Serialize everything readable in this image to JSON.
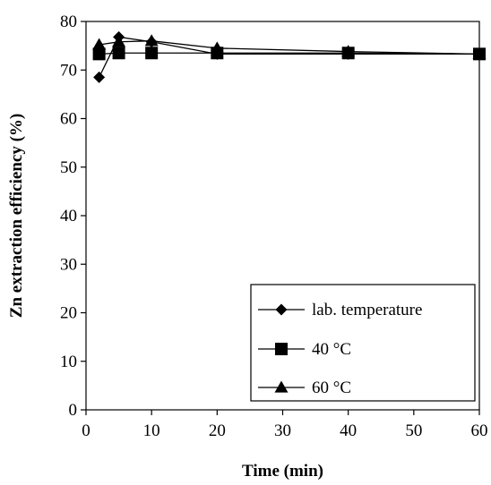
{
  "chart_data": {
    "type": "line",
    "title": "",
    "xlabel": "Time (min)",
    "ylabel": "Zn extraction efficiency (%)",
    "xlim": [
      0,
      60
    ],
    "ylim": [
      0,
      80
    ],
    "x_ticks": [
      "0",
      "10",
      "20",
      "30",
      "40",
      "50",
      "60"
    ],
    "y_ticks": [
      "0",
      "10",
      "20",
      "30",
      "40",
      "50",
      "60",
      "70",
      "80"
    ],
    "grid": false,
    "legend_position": "bottom-right",
    "series": [
      {
        "name": "lab. temperature",
        "marker": "diamond",
        "x": [
          2,
          5,
          10,
          20,
          40,
          60
        ],
        "y": [
          68.5,
          76.8,
          75.8,
          73.3,
          73.3,
          73.3
        ]
      },
      {
        "name": "40 °C",
        "marker": "square",
        "x": [
          2,
          5,
          10,
          20,
          40,
          60
        ],
        "y": [
          73.3,
          73.5,
          73.5,
          73.5,
          73.5,
          73.3
        ]
      },
      {
        "name": "60 °C",
        "marker": "triangle",
        "x": [
          2,
          5,
          10,
          20,
          40,
          60
        ],
        "y": [
          75.2,
          75.8,
          76.0,
          74.5,
          73.8,
          73.3
        ]
      }
    ]
  },
  "colors": {
    "line": "#000000",
    "marker": "#000000",
    "background": "#ffffff"
  }
}
